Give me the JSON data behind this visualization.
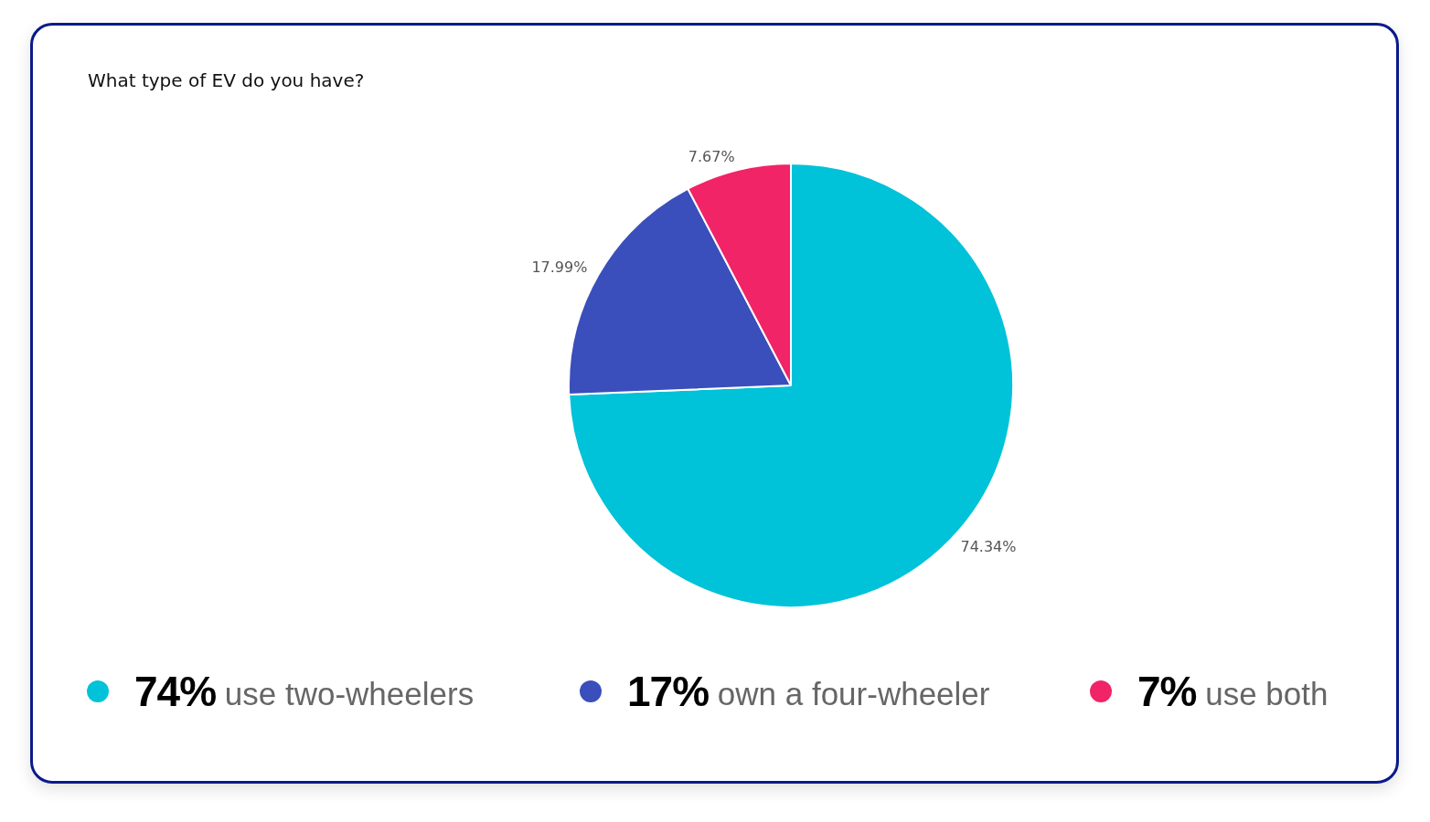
{
  "chart_data": {
    "type": "pie",
    "title": "What type of EV do you have?",
    "categories": [
      "74% use two-wheelers",
      "17% own a four-wheeler",
      "7% use both"
    ],
    "values": [
      74.34,
      17.99,
      7.67
    ],
    "value_labels": [
      "74.34%",
      "17.99%",
      "7.67%"
    ],
    "colors": [
      "#00c2d9",
      "#3a4fbb",
      "#f02466"
    ],
    "legend": "bottom"
  }
}
